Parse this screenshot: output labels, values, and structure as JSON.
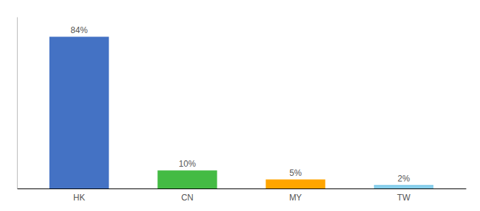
{
  "chart_data": {
    "type": "bar",
    "categories": [
      "HK",
      "CN",
      "MY",
      "TW"
    ],
    "values": [
      84,
      10,
      5,
      2
    ],
    "value_labels": [
      "84%",
      "10%",
      "5%",
      "2%"
    ],
    "colors": [
      "#4472C4",
      "#44BB44",
      "#FFA500",
      "#87CEEB"
    ],
    "ylim": [
      0,
      95
    ],
    "data_labels": true,
    "tick_labels": "x"
  }
}
